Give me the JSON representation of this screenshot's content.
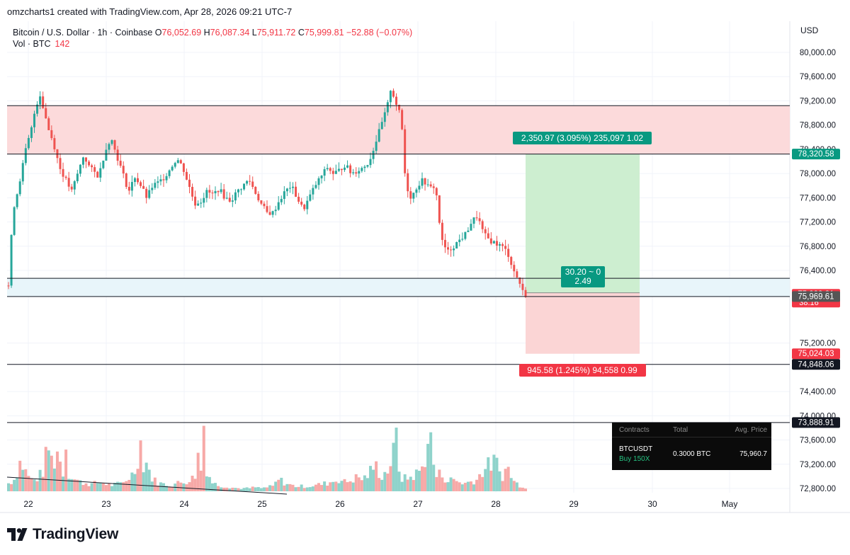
{
  "caption": "omzcharts1 created with TradingView.com, Apr 28, 2026 09:21 UTC-7",
  "legend": {
    "symbol": "Bitcoin / U.S. Dollar · 1h · Coinbase",
    "open_label": "O",
    "open": "76,052.69",
    "high_label": "H",
    "high": "76,087.34",
    "low_label": "L",
    "low": "75,911.72",
    "close_label": "C",
    "close": "75,999.81",
    "change": "−52.88 (−0.07%)",
    "volume_label": "Vol · BTC",
    "volume": "142"
  },
  "currency": "USD",
  "footer": {
    "brand": "TradingView"
  },
  "position_panel": {
    "headers": [
      "Contracts",
      "Total",
      "Avg. Price"
    ],
    "pair": "BTCUSDT",
    "side": "Buy 150X",
    "total": "0.3000 BTC",
    "avg_price": "75,960.7"
  },
  "colors": {
    "up": "#26a69a",
    "down": "#ef5350",
    "up_volume": "#8fd3cb",
    "down_volume": "#f7a9a7",
    "supply_zone": "#fcdadb",
    "demand_zone": "#e8f5fa",
    "profit_zone": "#cdeed0",
    "loss_zone": "#fbd5d5",
    "profit_label": "#089981",
    "loss_label": "#f23645"
  },
  "chart_data": {
    "type": "candlestick",
    "title": "Bitcoin / U.S. Dollar · 1h · Coinbase",
    "x_tick_labels": [
      "22",
      "23",
      "24",
      "25",
      "26",
      "27",
      "28",
      "29",
      "30",
      "May"
    ],
    "y_tick_labels": [
      "80,000.00",
      "79,600.00",
      "79,200.00",
      "78,800.00",
      "78,400.00",
      "78,000.00",
      "77,600.00",
      "77,200.00",
      "76,800.00",
      "76,400.00",
      "76,000.00",
      "75,200.00",
      "74,400.00",
      "74,000.00",
      "73,600.00",
      "73,200.00",
      "72,800.00"
    ],
    "ylim": [
      72700,
      80150
    ],
    "price_path": [
      [
        0,
        76150
      ],
      [
        1.5,
        77400
      ],
      [
        3,
        77700
      ],
      [
        5,
        78200
      ],
      [
        6,
        78450
      ],
      [
        7.5,
        78700
      ],
      [
        9,
        79100
      ],
      [
        10.5,
        79300
      ],
      [
        12,
        79000
      ],
      [
        13.5,
        78700
      ],
      [
        15,
        78500
      ],
      [
        17,
        78100
      ],
      [
        19,
        77900
      ],
      [
        21,
        77700
      ],
      [
        23,
        78000
      ],
      [
        25,
        78300
      ],
      [
        27,
        78100
      ],
      [
        30,
        77950
      ],
      [
        32,
        78350
      ],
      [
        34,
        78600
      ],
      [
        36,
        78300
      ],
      [
        38,
        78000
      ],
      [
        40,
        77700
      ],
      [
        42,
        77950
      ],
      [
        44,
        77800
      ],
      [
        46,
        77600
      ],
      [
        48,
        77800
      ],
      [
        50,
        77850
      ],
      [
        52,
        77950
      ],
      [
        54,
        78100
      ],
      [
        56,
        78250
      ],
      [
        58,
        78100
      ],
      [
        60,
        77800
      ],
      [
        62,
        77500
      ],
      [
        64,
        77550
      ],
      [
        66,
        77700
      ],
      [
        68,
        77650
      ],
      [
        70,
        77750
      ],
      [
        72,
        77600
      ],
      [
        74,
        77550
      ],
      [
        76,
        77700
      ],
      [
        78,
        77800
      ],
      [
        80,
        77900
      ],
      [
        82,
        77700
      ],
      [
        84,
        77500
      ],
      [
        86,
        77350
      ],
      [
        88,
        77350
      ],
      [
        90,
        77550
      ],
      [
        92,
        77700
      ],
      [
        94,
        77800
      ],
      [
        96,
        77600
      ],
      [
        98,
        77400
      ],
      [
        100,
        77600
      ],
      [
        102,
        77800
      ],
      [
        104,
        77950
      ],
      [
        106,
        78100
      ],
      [
        108,
        78000
      ],
      [
        110,
        78050
      ],
      [
        112,
        78150
      ],
      [
        114,
        78000
      ],
      [
        116,
        78050
      ],
      [
        118,
        78100
      ],
      [
        120,
        78200
      ],
      [
        122,
        78500
      ],
      [
        124,
        78800
      ],
      [
        126,
        79100
      ],
      [
        127,
        79400
      ],
      [
        128,
        79300
      ],
      [
        129,
        79150
      ],
      [
        130,
        79000
      ],
      [
        131,
        78700
      ],
      [
        132,
        77900
      ],
      [
        133,
        77700
      ],
      [
        134,
        77600
      ],
      [
        136,
        77800
      ],
      [
        138,
        77900
      ],
      [
        140,
        77750
      ],
      [
        142,
        77800
      ],
      [
        144,
        76900
      ],
      [
        146,
        76700
      ],
      [
        148,
        76800
      ],
      [
        150,
        76900
      ],
      [
        152,
        77000
      ],
      [
        154,
        77200
      ],
      [
        156,
        77300
      ],
      [
        158,
        77000
      ],
      [
        160,
        76900
      ],
      [
        162,
        76850
      ],
      [
        164,
        76800
      ],
      [
        166,
        76700
      ],
      [
        168,
        76400
      ],
      [
        170,
        76200
      ],
      [
        171,
        76050
      ],
      [
        172,
        76000
      ]
    ],
    "volume_scale_max": 100,
    "volume_path": [
      [
        0,
        8
      ],
      [
        2,
        12
      ],
      [
        4,
        30
      ],
      [
        6,
        18
      ],
      [
        8,
        10
      ],
      [
        10,
        14
      ],
      [
        12,
        22
      ],
      [
        13,
        48
      ],
      [
        14,
        35
      ],
      [
        15,
        24
      ],
      [
        16,
        44
      ],
      [
        17,
        32
      ],
      [
        18,
        14
      ],
      [
        19,
        50
      ],
      [
        20,
        18
      ],
      [
        22,
        12
      ],
      [
        24,
        9
      ],
      [
        26,
        8
      ],
      [
        28,
        7
      ],
      [
        30,
        9
      ],
      [
        32,
        8
      ],
      [
        34,
        6
      ],
      [
        36,
        7
      ],
      [
        38,
        8
      ],
      [
        40,
        14
      ],
      [
        41,
        16
      ],
      [
        42,
        20
      ],
      [
        43,
        35
      ],
      [
        44,
        48
      ],
      [
        45,
        25
      ],
      [
        46,
        30
      ],
      [
        47,
        18
      ],
      [
        48,
        12
      ],
      [
        50,
        8
      ],
      [
        52,
        7
      ],
      [
        54,
        6
      ],
      [
        56,
        8
      ],
      [
        58,
        9
      ],
      [
        60,
        11
      ],
      [
        62,
        14
      ],
      [
        63,
        36
      ],
      [
        64,
        21
      ],
      [
        65,
        67
      ],
      [
        66,
        20
      ],
      [
        67,
        14
      ],
      [
        68,
        8
      ],
      [
        70,
        6
      ],
      [
        72,
        5
      ],
      [
        74,
        4
      ],
      [
        76,
        3
      ],
      [
        78,
        3
      ],
      [
        80,
        3
      ],
      [
        82,
        4
      ],
      [
        84,
        3
      ],
      [
        86,
        4
      ],
      [
        88,
        5
      ],
      [
        90,
        12
      ],
      [
        92,
        8
      ],
      [
        94,
        6
      ],
      [
        96,
        5
      ],
      [
        98,
        5
      ],
      [
        100,
        5
      ],
      [
        102,
        6
      ],
      [
        104,
        7
      ],
      [
        106,
        8
      ],
      [
        108,
        10
      ],
      [
        110,
        12
      ],
      [
        112,
        9
      ],
      [
        114,
        11
      ],
      [
        116,
        14
      ],
      [
        118,
        12
      ],
      [
        120,
        18
      ],
      [
        122,
        26
      ],
      [
        124,
        15
      ],
      [
        126,
        20
      ],
      [
        128,
        36
      ],
      [
        129,
        52
      ],
      [
        130,
        22
      ],
      [
        131,
        12
      ],
      [
        134,
        14
      ],
      [
        136,
        18
      ],
      [
        138,
        24
      ],
      [
        139,
        43
      ],
      [
        140,
        60
      ],
      [
        142,
        14
      ],
      [
        144,
        18
      ],
      [
        146,
        10
      ],
      [
        148,
        12
      ],
      [
        150,
        9
      ],
      [
        152,
        8
      ],
      [
        154,
        10
      ],
      [
        156,
        12
      ],
      [
        158,
        22
      ],
      [
        160,
        26
      ],
      [
        162,
        30
      ],
      [
        164,
        14
      ],
      [
        166,
        24
      ],
      [
        168,
        10
      ],
      [
        170,
        6
      ],
      [
        172,
        4
      ]
    ],
    "zones": {
      "supply": {
        "from": 78320.58,
        "to": 79120
      },
      "demand": {
        "from": 75969.61,
        "to": 76270
      },
      "target": {
        "from": 76030,
        "to": 78320.58
      },
      "stop": {
        "from": 75024.03,
        "to": 76030
      }
    },
    "horizontal_lines": [
      79120,
      78320.58,
      76270,
      75969.61,
      74848.06,
      73888.91
    ],
    "price_tags": [
      {
        "label": "78,320.58",
        "value": 78320.58,
        "color": "#089981"
      },
      {
        "label": "75,999.81",
        "value": 75999.81,
        "color": "#f23645",
        "sub": "38:16"
      },
      {
        "label": "75,969.61",
        "value": 75969.61,
        "color": "#555555"
      },
      {
        "label": "75,024.03",
        "value": 75024.03,
        "color": "#f23645"
      },
      {
        "label": "74,848.06",
        "value": 74848.06,
        "color": "#131722"
      },
      {
        "label": "73,888.91",
        "value": 73888.91,
        "color": "#131722"
      }
    ],
    "annotations": [
      {
        "text": "2,350.97 (3.095%) 235,097 1.02",
        "kind": "profit"
      },
      {
        "text": "30.20 ~ 0",
        "text2": "2.49",
        "kind": "ratio"
      },
      {
        "text": "945.58 (1.245%) 94,558 0.99",
        "kind": "loss"
      }
    ]
  }
}
